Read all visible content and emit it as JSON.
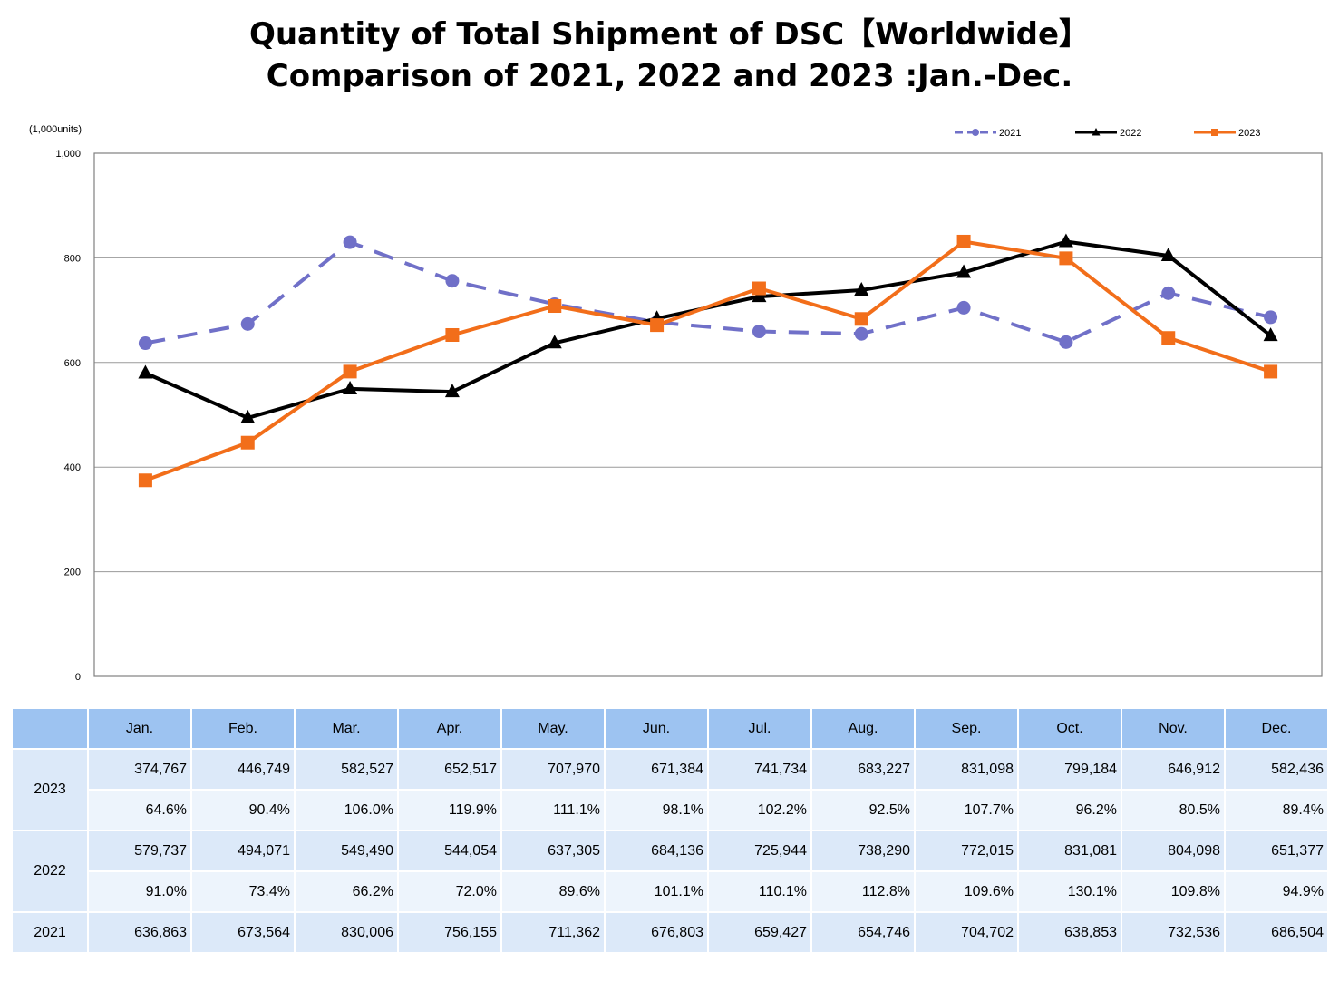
{
  "page": {
    "title_line1": "Quantity of Total Shipment of DSC【Worldwide】",
    "title_line2": "Comparison of 2021, 2022 and 2023 :Jan.-Dec."
  },
  "chart_data": {
    "type": "line",
    "unit_label": "(1,000units)",
    "categories": [
      "Jan.",
      "Feb.",
      "Mar.",
      "Apr.",
      "May.",
      "Jun.",
      "Jul.",
      "Aug.",
      "Sep.",
      "Oct.",
      "Nov.",
      "Dec."
    ],
    "ylim": [
      0,
      1000
    ],
    "yticks": [
      0,
      200,
      400,
      600,
      800,
      1000
    ],
    "ytick_labels": [
      "0",
      "200",
      "400",
      "600",
      "800",
      "1,000"
    ],
    "grid": true,
    "legend_position": "top-right",
    "series": [
      {
        "name": "2021",
        "color": "#7070c8",
        "style": "dashed",
        "marker": "circle",
        "values": [
          636.863,
          673.564,
          830.006,
          756.155,
          711.362,
          676.803,
          659.427,
          654.746,
          704.702,
          638.853,
          732.536,
          686.504
        ]
      },
      {
        "name": "2022",
        "color": "#000000",
        "style": "solid",
        "marker": "triangle",
        "values": [
          579.737,
          494.071,
          549.49,
          544.054,
          637.305,
          684.136,
          725.944,
          738.29,
          772.015,
          831.081,
          804.098,
          651.377
        ]
      },
      {
        "name": "2023",
        "color": "#f26e1a",
        "style": "solid",
        "marker": "square",
        "values": [
          374.767,
          446.749,
          582.527,
          652.517,
          707.97,
          671.384,
          741.734,
          683.227,
          831.098,
          799.184,
          646.912,
          582.436
        ]
      }
    ]
  },
  "table": {
    "months": [
      "Jan.",
      "Feb.",
      "Mar.",
      "Apr.",
      "May.",
      "Jun.",
      "Jul.",
      "Aug.",
      "Sep.",
      "Oct.",
      "Nov.",
      "Dec."
    ],
    "rows": [
      {
        "year": "2023",
        "values": [
          "374,767",
          "446,749",
          "582,527",
          "652,517",
          "707,970",
          "671,384",
          "741,734",
          "683,227",
          "831,098",
          "799,184",
          "646,912",
          "582,436"
        ],
        "ratios": [
          "64.6%",
          "90.4%",
          "106.0%",
          "119.9%",
          "111.1%",
          "98.1%",
          "102.2%",
          "92.5%",
          "107.7%",
          "96.2%",
          "80.5%",
          "89.4%"
        ]
      },
      {
        "year": "2022",
        "values": [
          "579,737",
          "494,071",
          "549,490",
          "544,054",
          "637,305",
          "684,136",
          "725,944",
          "738,290",
          "772,015",
          "831,081",
          "804,098",
          "651,377"
        ],
        "ratios": [
          "91.0%",
          "73.4%",
          "66.2%",
          "72.0%",
          "89.6%",
          "101.1%",
          "110.1%",
          "112.8%",
          "109.6%",
          "130.1%",
          "109.8%",
          "94.9%"
        ]
      },
      {
        "year": "2021",
        "values": [
          "636,863",
          "673,564",
          "830,006",
          "756,155",
          "711,362",
          "676,803",
          "659,427",
          "654,746",
          "704,702",
          "638,853",
          "732,536",
          "686,504"
        ],
        "ratios": []
      }
    ]
  }
}
